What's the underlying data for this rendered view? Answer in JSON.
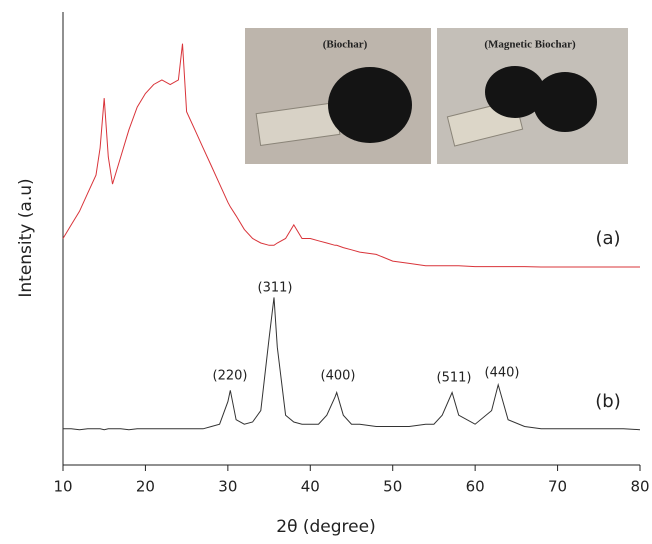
{
  "chart_data": {
    "type": "line",
    "xlabel": "2θ (degree)",
    "ylabel": "Intensity (a.u)",
    "xlim": [
      10,
      80
    ],
    "xticks": [
      10,
      20,
      30,
      40,
      50,
      60,
      70,
      80
    ],
    "ylim": [
      0,
      100
    ],
    "x": [
      10,
      11,
      12,
      13,
      14,
      14.5,
      15,
      15.5,
      16,
      17,
      18,
      19,
      20,
      21,
      22,
      23,
      24,
      24.5,
      25,
      26,
      27,
      28,
      29,
      30,
      30.3,
      31,
      32,
      33,
      34,
      35,
      35.6,
      36,
      37,
      38,
      39,
      40,
      41,
      42,
      43,
      43.2,
      44,
      45,
      46,
      48,
      50,
      52,
      54,
      55,
      56,
      57.2,
      58,
      60,
      62,
      62.8,
      64,
      66,
      68,
      70,
      72,
      74,
      76,
      78,
      80
    ],
    "series": [
      {
        "name": "(a)",
        "color": "#d9343a",
        "values": [
          50,
          53,
          56,
          60,
          64,
          70,
          81,
          68,
          62,
          68,
          74,
          79,
          82,
          84,
          85,
          84,
          85,
          93,
          78,
          74,
          70,
          66,
          62,
          58,
          57,
          55,
          52,
          50,
          49,
          48.5,
          48.5,
          49,
          50,
          53,
          50,
          50,
          49.5,
          49,
          48.5,
          48.5,
          48,
          47.5,
          47,
          46.5,
          45,
          44.5,
          44,
          44,
          44,
          44,
          44,
          43.8,
          43.8,
          43.8,
          43.8,
          43.8,
          43.7,
          43.7,
          43.7,
          43.7,
          43.7,
          43.7,
          43.7
        ]
      },
      {
        "name": "(b)",
        "color": "#333333",
        "values": [
          8,
          8,
          7.8,
          8,
          8,
          8,
          7.8,
          8,
          8,
          8,
          7.8,
          8,
          8,
          8,
          8,
          8,
          8,
          8,
          8,
          8,
          8,
          8.5,
          9,
          14,
          16.5,
          10,
          9,
          9.5,
          12,
          28,
          37,
          26,
          11,
          9.5,
          9,
          9,
          9,
          11,
          15,
          16,
          11,
          9,
          9,
          8.5,
          8.5,
          8.5,
          9,
          9,
          11,
          16,
          11,
          9,
          12,
          17.7,
          10,
          8.5,
          8,
          8,
          8,
          8,
          8,
          8,
          7.8
        ]
      }
    ],
    "peak_labels": [
      "(220)",
      "(311)",
      "(400)",
      "(511)",
      "(440)"
    ],
    "inset_labels": [
      "(Biochar)",
      "(Magnetic Biochar)"
    ]
  }
}
